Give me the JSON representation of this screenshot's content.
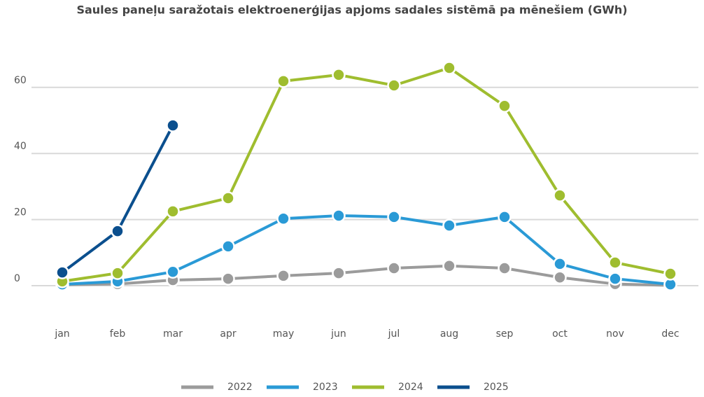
{
  "chart_data": {
    "type": "line",
    "title": "Saules paneļu saražotais elektroenerģijas apjoms sadales sistēmā pa mēnešiem (GWh)",
    "categories": [
      "jan",
      "feb",
      "mar",
      "apr",
      "may",
      "jun",
      "jul",
      "aug",
      "sep",
      "oct",
      "nov",
      "dec"
    ],
    "series": [
      {
        "name": "2022",
        "color": "#9b9b9b",
        "values": [
          0.3,
          0.5,
          1.7,
          2.1,
          3,
          3.8,
          5.3,
          6,
          5.3,
          2.5,
          0.5,
          0.1
        ]
      },
      {
        "name": "2023",
        "color": "#2a9ad6",
        "values": [
          0.4,
          1.3,
          4.2,
          11.9,
          20.3,
          21.2,
          20.8,
          18.2,
          20.8,
          6.6,
          2.1,
          0.4
        ]
      },
      {
        "name": "2024",
        "color": "#9fbd2f",
        "values": [
          1.3,
          3.8,
          22.5,
          26.5,
          61.9,
          63.8,
          60.6,
          65.9,
          54.4,
          27.3,
          7,
          3.6
        ]
      },
      {
        "name": "2025",
        "color": "#0b4f8e",
        "values": [
          4,
          16.5,
          48.5,
          null,
          null,
          null,
          null,
          null,
          null,
          null,
          null,
          null
        ]
      }
    ],
    "ylim": [
      -8,
      80
    ],
    "yticks": [
      0,
      20,
      40,
      60
    ],
    "grid": true,
    "legend": "bottom"
  }
}
